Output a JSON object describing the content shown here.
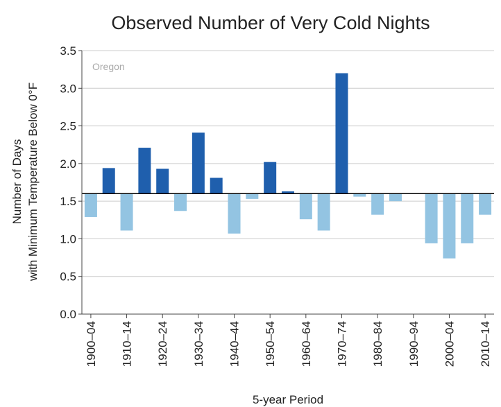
{
  "chart_data": {
    "type": "bar",
    "title": "Observed Number of Very Cold Nights",
    "annotation": "Oregon",
    "xlabel": "5-year Period",
    "ylabel": [
      "Number of Days",
      "with Minimum Temperature Below 0°F"
    ],
    "categories": [
      "1900–04",
      null,
      "1910–14",
      null,
      "1920–24",
      null,
      "1930–34",
      null,
      "1940–44",
      null,
      "1950–54",
      null,
      "1960–64",
      null,
      "1970–74",
      null,
      "1980–84",
      null,
      "1990–94",
      null,
      "2000–04",
      null,
      "2010–14"
    ],
    "values": [
      1.29,
      1.94,
      1.11,
      2.21,
      1.93,
      1.37,
      2.41,
      1.81,
      1.07,
      1.53,
      2.02,
      1.63,
      1.26,
      1.11,
      3.2,
      1.56,
      1.32,
      1.5,
      1.6,
      0.94,
      0.74,
      0.94,
      1.32
    ],
    "baseline": 1.6,
    "color_above": "#1f5fad",
    "color_below": "#93c4e2",
    "ylim": [
      0,
      3.5
    ],
    "yticks": [
      {
        "value": 0,
        "label": "0.0"
      },
      0.5,
      {
        "value": 1,
        "label": "1.0"
      },
      1.5,
      {
        "value": 2,
        "label": "2.0"
      },
      2.5,
      {
        "value": 3,
        "label": "3.0"
      },
      3.5
    ],
    "grid": true
  }
}
